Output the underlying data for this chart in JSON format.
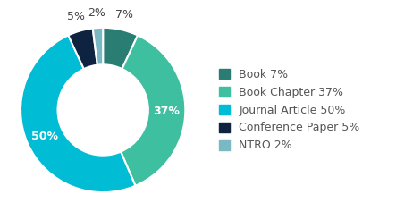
{
  "labels": [
    "Book",
    "Book Chapter",
    "Journal Article",
    "Conference Paper",
    "NTRO"
  ],
  "values": [
    7,
    37,
    50,
    5,
    2
  ],
  "colors": [
    "#2a7d72",
    "#3dbfa0",
    "#00bcd4",
    "#0d2340",
    "#7ab8c4"
  ],
  "pct_labels": [
    "7%",
    "37%",
    "50%",
    "5%",
    "2%"
  ],
  "legend_labels": [
    "Book 7%",
    "Book Chapter 37%",
    "Journal Article 50%",
    "Conference Paper 5%",
    "NTRO 2%"
  ],
  "background_color": "#ffffff",
  "text_color": "#555555",
  "font_size": 9,
  "legend_font_size": 9,
  "outside_threshold": 8
}
